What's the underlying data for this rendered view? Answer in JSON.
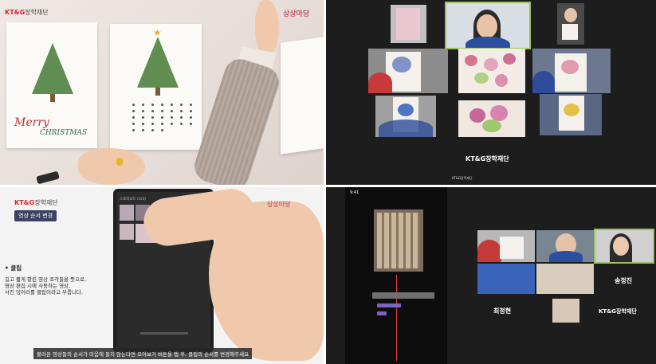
{
  "brand": {
    "logo_text": "KT&G",
    "foundation": "장학재단",
    "program_logo": "상상마당"
  },
  "top_left": {
    "card_greeting_1": "Merry",
    "card_greeting_2": "CHRISTMAS"
  },
  "top_right": {
    "center_label": "KT&G장학재단",
    "bottom_label": "KT&G장학재단"
  },
  "bottom_left": {
    "section_badge": "영상 순서 변경",
    "bullet_title": "• 클립",
    "bullet_body_1": "길고 짧게 잘린 영상 조각들을 뜻으로,",
    "bullet_body_2": "영상 편집 시에 사용하는 영상,",
    "bullet_body_3": "사진 덩어리를 클립이라고 부릅니다.",
    "subtitle": "불러온 영상들의 순서가 마음에 들지 않는다면 모아보기 버튼을 탭 후, 클립의 순서를 변경해주세요",
    "phone_header": "스토리보드 (1/3)"
  },
  "bottom_right": {
    "phone_time": "9:41",
    "names": [
      "송정진",
      "최정현"
    ],
    "foundation_label": "KT&G장학재단"
  },
  "colors": {
    "accent_red": "#d6252b",
    "dark_bg": "#1d1d1d",
    "badge_bg": "#3b4160"
  }
}
